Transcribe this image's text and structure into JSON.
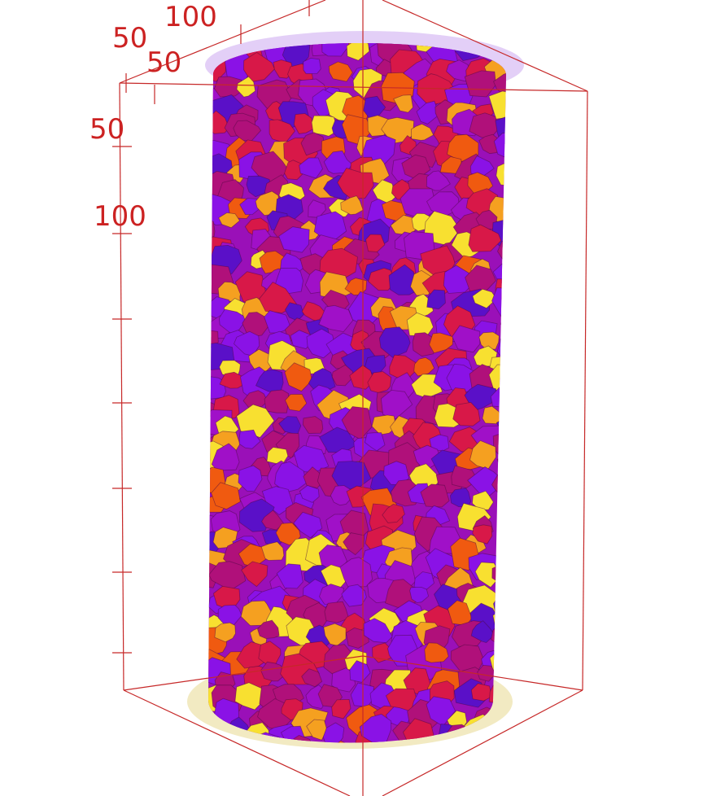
{
  "axes": {
    "x_labels": [
      "50",
      "100"
    ],
    "y_labels": [
      "50"
    ],
    "z_labels": [
      "50",
      "100"
    ]
  }
}
